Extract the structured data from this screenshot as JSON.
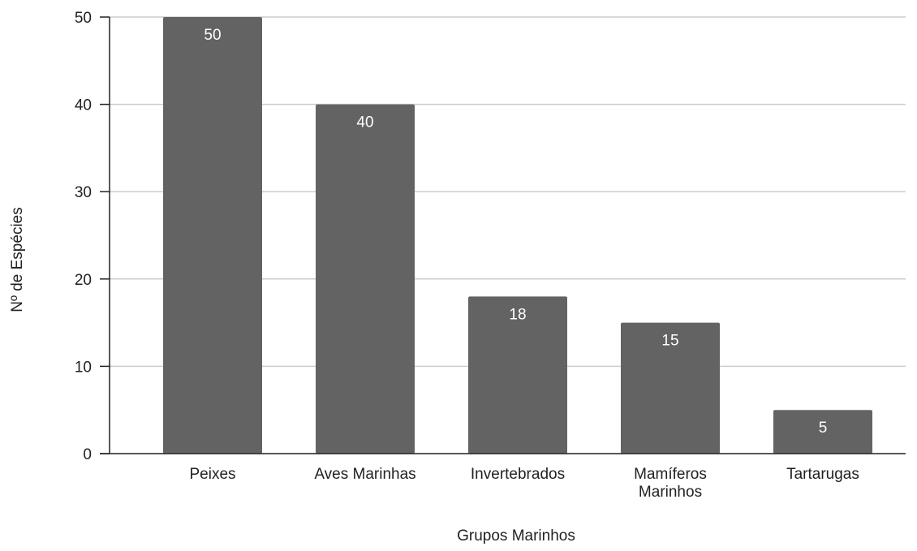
{
  "chart_data": {
    "type": "bar",
    "categories": [
      "Peixes",
      "Aves Marinhas",
      "Invertebrados",
      "Mamíferos Marinhos",
      "Tartarugas"
    ],
    "category_lines": [
      [
        "Peixes"
      ],
      [
        "Aves Marinhas"
      ],
      [
        "Invertebrados"
      ],
      [
        "Mamíferos",
        "Marinhos"
      ],
      [
        "Tartarugas"
      ]
    ],
    "values": [
      50,
      40,
      18,
      15,
      5
    ],
    "data_labels": [
      "50",
      "40",
      "18",
      "15",
      "5"
    ],
    "title": "",
    "xlabel": "Grupos Marinhos",
    "ylabel": "Nº de Espécies",
    "ylim": [
      0,
      50
    ],
    "yticks": [
      0,
      10,
      20,
      30,
      40,
      50
    ],
    "grid": true,
    "legend": "none",
    "colors": {
      "bar": "#636363",
      "grid": "#cccccc",
      "axis": "#222222",
      "data_label": "#ffffff"
    }
  }
}
